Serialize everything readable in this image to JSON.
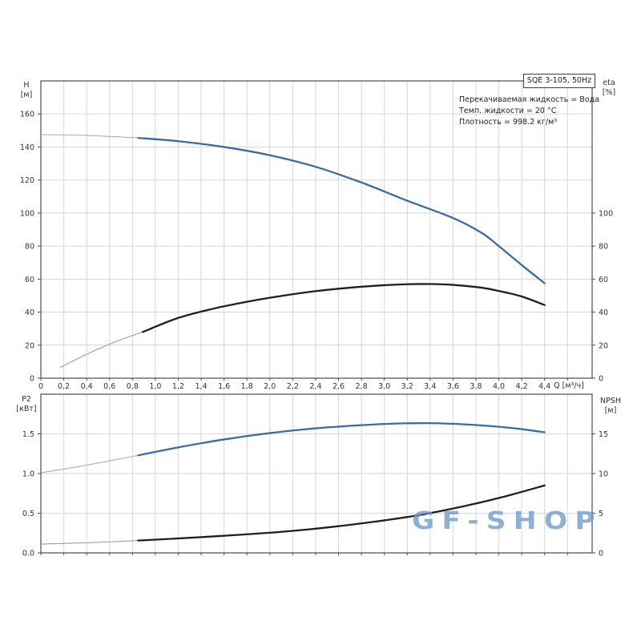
{
  "page": {
    "background": "#ffffff"
  },
  "header_box": {
    "label": "SQE 3-105, 50Hz"
  },
  "info_lines": [
    "Перекачиваемая жидкость = Вода",
    "Темп. жидкости = 20 °C",
    "Плотность = 998.2 кг/м³"
  ],
  "watermark": {
    "text": "GF-SHOP",
    "color": "#6e9ccb"
  },
  "axes_labels": {
    "top_left": [
      "H",
      "[м]"
    ],
    "top_right": [
      "eta",
      "[%]"
    ],
    "x_unit": "Q [м³/ч]",
    "bottom_left": [
      "P2",
      "[кВт]"
    ],
    "bottom_right": [
      "NPSH",
      "[м]"
    ]
  },
  "colors": {
    "curve_blue": "#3a6d9d",
    "curve_black": "#1f1f1f",
    "thin_blue": "#9fb0bf",
    "thin_gray": "#9b9b9b",
    "grid": "#d6d6d6",
    "frame": "#4a4a4a",
    "tick_text": "#333333"
  },
  "chart_data": [
    {
      "type": "line",
      "title": "SQE 3-105, 50Hz",
      "xlabel": "Q [м³/ч]",
      "ylabel_left": "H [м]",
      "ylabel_right": "eta [%]",
      "xlim": [
        0,
        4.82
      ],
      "ylim_left": [
        0,
        180
      ],
      "ylim_right": [
        0,
        180
      ],
      "grid": true,
      "x_tick_labels": [
        "0",
        "0,2",
        "0,4",
        "0,6",
        "0,8",
        "1,0",
        "1,2",
        "1,4",
        "1,6",
        "1,8",
        "2,0",
        "2,2",
        "2,4",
        "2,6",
        "2,8",
        "3,0",
        "3,2",
        "3,4",
        "3,6",
        "3,8",
        "4,0",
        "4,2",
        "4,4"
      ],
      "y_ticks_left": [
        "0",
        "20",
        "40",
        "60",
        "80",
        "100",
        "120",
        "140",
        "160"
      ],
      "y_ticks_right": [
        "0",
        "20",
        "40",
        "60",
        "80",
        "100"
      ],
      "series": [
        {
          "name": "H",
          "axis": "left",
          "thin_until": 0.85,
          "points": [
            [
              0,
              147.5
            ],
            [
              0.4,
              147
            ],
            [
              0.85,
              145.5
            ],
            [
              1.2,
              143.5
            ],
            [
              1.6,
              140
            ],
            [
              2.0,
              135
            ],
            [
              2.4,
              128
            ],
            [
              2.8,
              118.5
            ],
            [
              3.2,
              107.5
            ],
            [
              3.6,
              97
            ],
            [
              3.85,
              88
            ],
            [
              4.0,
              80
            ],
            [
              4.2,
              68.5
            ],
            [
              4.4,
              57.5
            ]
          ]
        },
        {
          "name": "eta",
          "axis": "right",
          "thin_until": 0.89,
          "points": [
            [
              0.17,
              6.5
            ],
            [
              0.4,
              14.5
            ],
            [
              0.65,
              22
            ],
            [
              0.89,
              28
            ],
            [
              1.2,
              36.5
            ],
            [
              1.5,
              42
            ],
            [
              1.8,
              46.3
            ],
            [
              2.1,
              49.8
            ],
            [
              2.4,
              52.7
            ],
            [
              2.7,
              54.8
            ],
            [
              3.0,
              56.3
            ],
            [
              3.2,
              56.9
            ],
            [
              3.4,
              57
            ],
            [
              3.6,
              56.5
            ],
            [
              3.85,
              54.8
            ],
            [
              4.0,
              52.8
            ],
            [
              4.2,
              49.5
            ],
            [
              4.4,
              44.3
            ]
          ]
        }
      ]
    },
    {
      "type": "line",
      "ylabel_left": "P2 [кВт]",
      "ylabel_right": "NPSH [м]",
      "xlim": [
        0,
        4.82
      ],
      "ylim_left": [
        0,
        2
      ],
      "ylim_right": [
        0,
        20
      ],
      "grid": true,
      "x_tick_labels": [],
      "y_ticks_left": [
        "0.0",
        "0.5",
        "1.0",
        "1.5"
      ],
      "y_ticks_right": [
        "0",
        "5",
        "10",
        "15"
      ],
      "series": [
        {
          "name": "P2",
          "axis": "left",
          "thin_until": 0.85,
          "points": [
            [
              0,
              1.01
            ],
            [
              0.3,
              1.08
            ],
            [
              0.6,
              1.16
            ],
            [
              0.85,
              1.23
            ],
            [
              1.2,
              1.33
            ],
            [
              1.6,
              1.43
            ],
            [
              2.0,
              1.51
            ],
            [
              2.4,
              1.57
            ],
            [
              2.8,
              1.61
            ],
            [
              3.1,
              1.63
            ],
            [
              3.4,
              1.635
            ],
            [
              3.7,
              1.62
            ],
            [
              4.0,
              1.59
            ],
            [
              4.2,
              1.56
            ],
            [
              4.4,
              1.52
            ]
          ]
        },
        {
          "name": "NPSH",
          "axis": "right",
          "thin_until": 0.85,
          "points": [
            [
              0,
              1.1
            ],
            [
              0.45,
              1.3
            ],
            [
              0.85,
              1.55
            ],
            [
              1.3,
              1.9
            ],
            [
              1.7,
              2.25
            ],
            [
              2.1,
              2.65
            ],
            [
              2.5,
              3.2
            ],
            [
              2.9,
              3.9
            ],
            [
              3.3,
              4.75
            ],
            [
              3.7,
              5.9
            ],
            [
              4.05,
              7.1
            ],
            [
              4.4,
              8.5
            ]
          ]
        }
      ]
    }
  ]
}
